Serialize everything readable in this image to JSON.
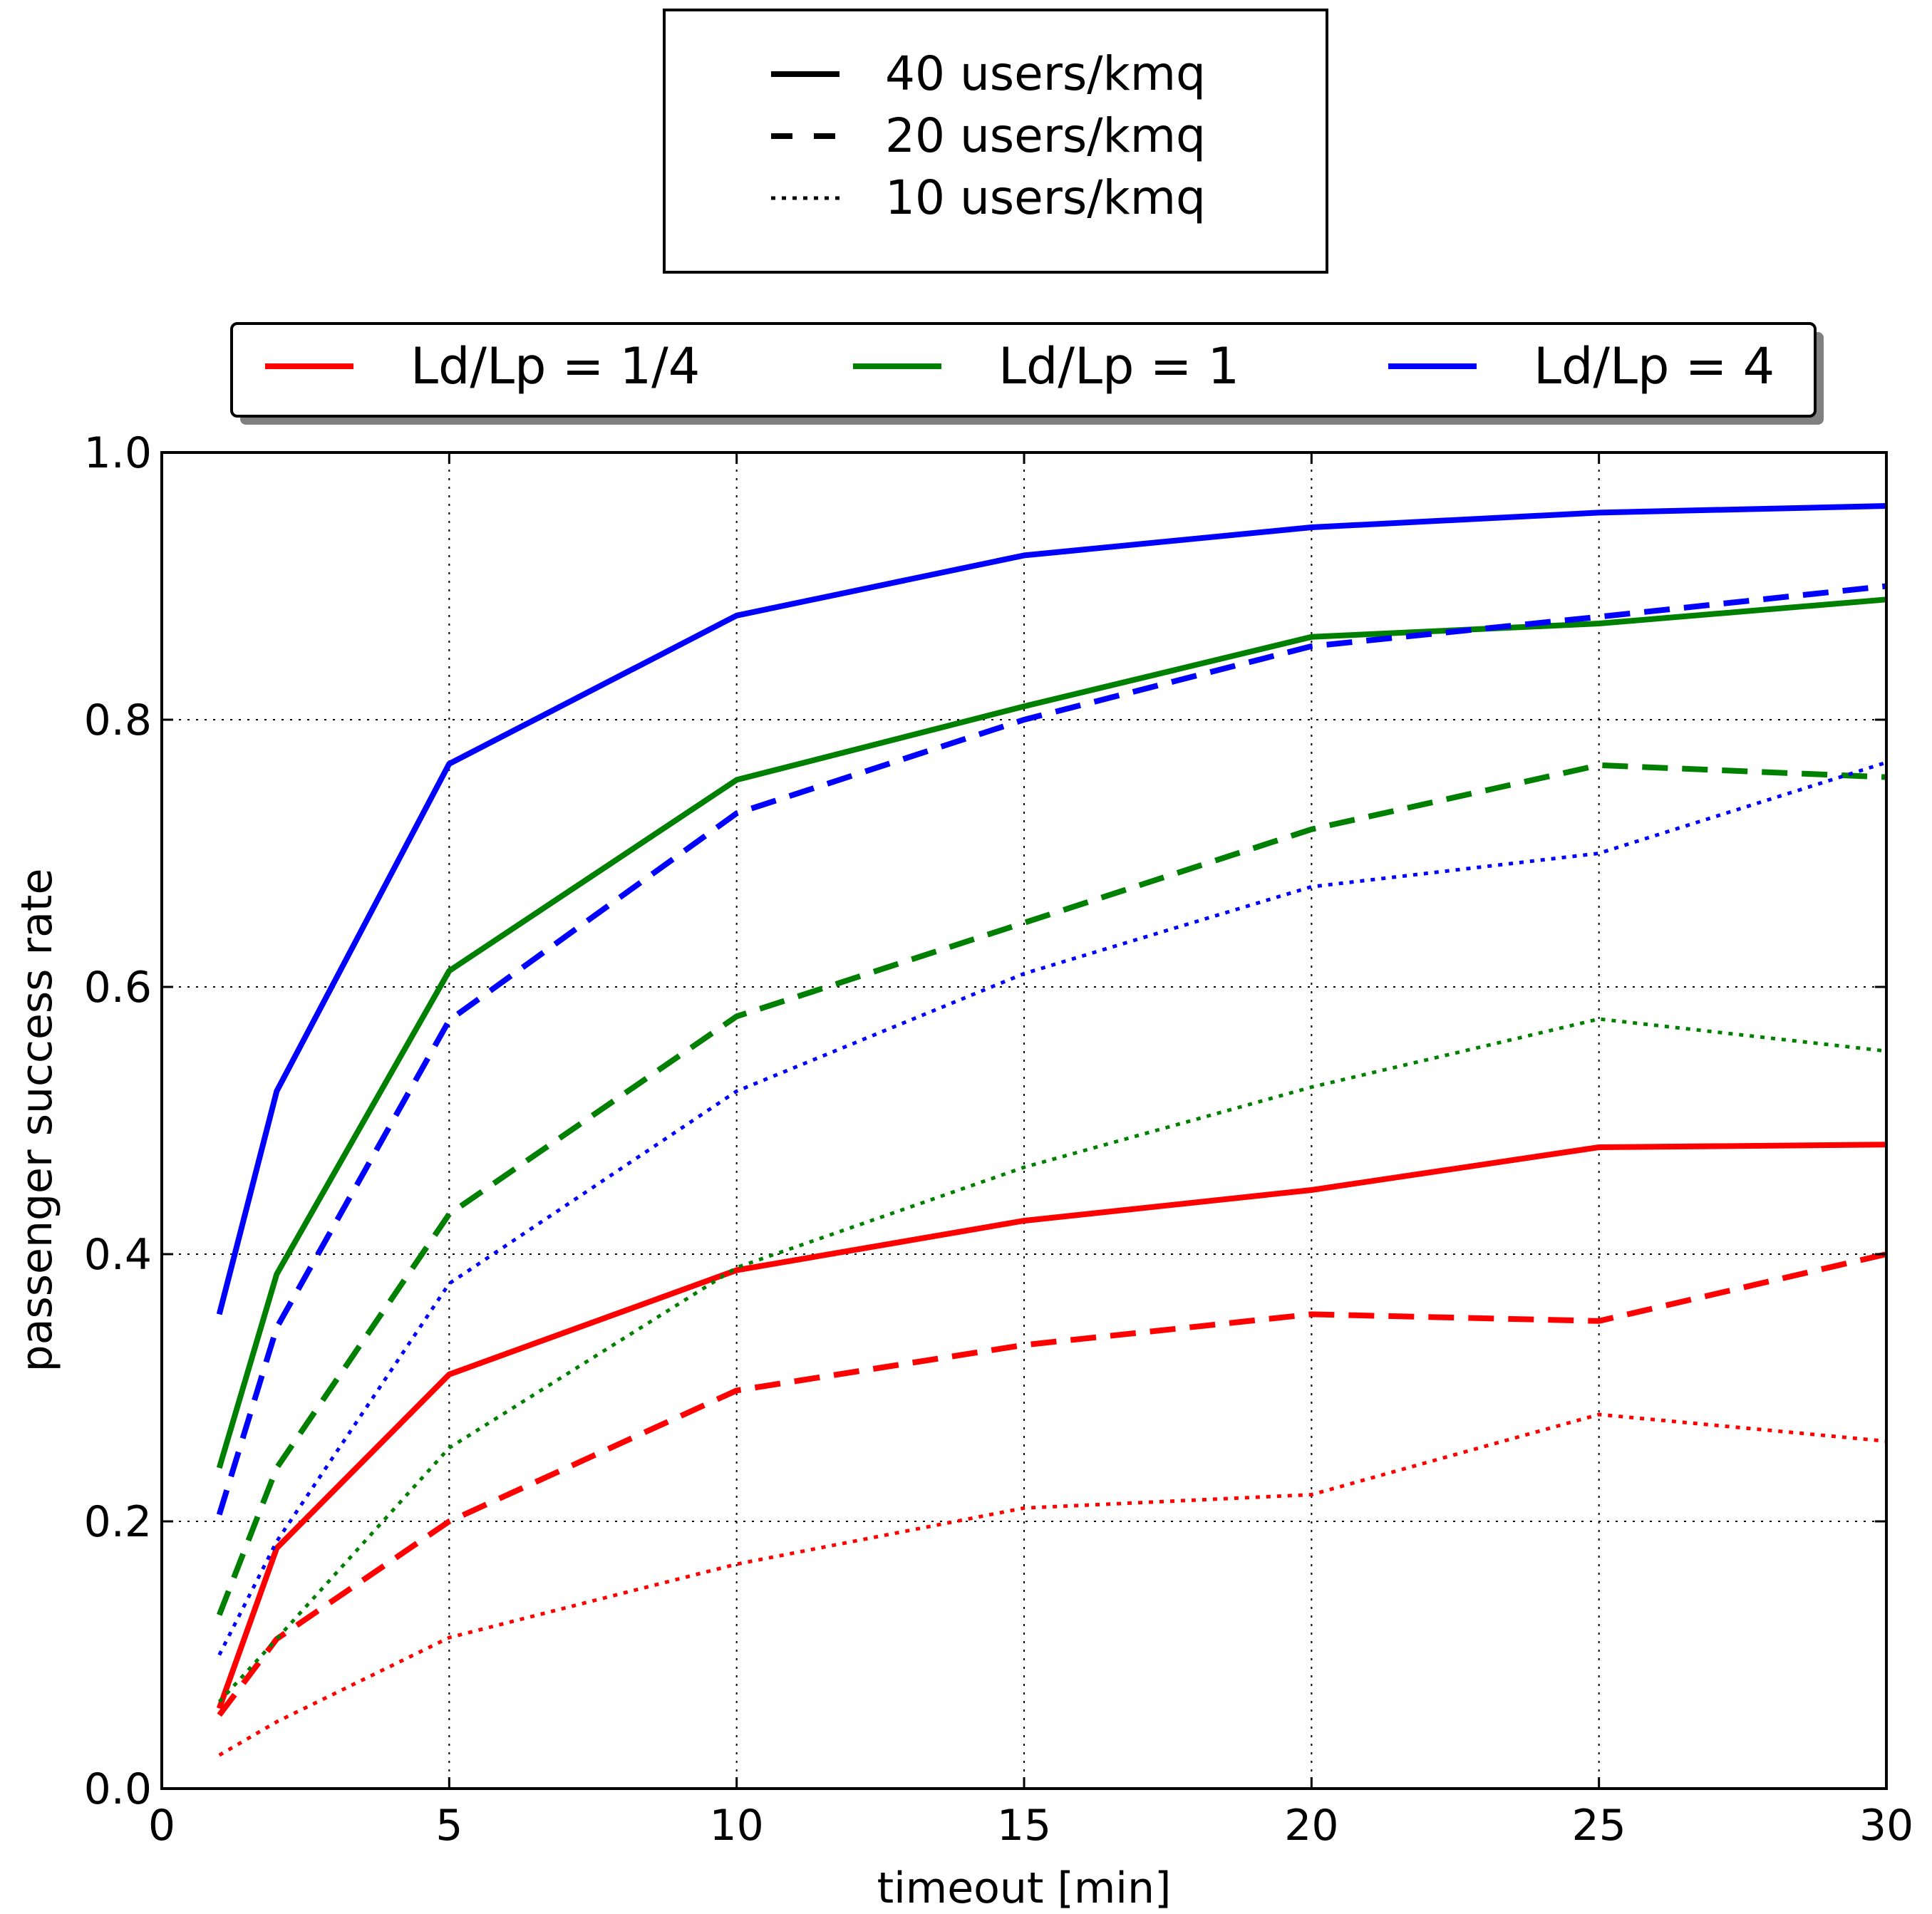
{
  "chart_data": {
    "type": "line",
    "title": "",
    "xlabel": "timeout [min]",
    "ylabel": "passenger success rate",
    "xlim": [
      0,
      30
    ],
    "ylim": [
      0.0,
      1.0
    ],
    "xticks": [
      0,
      5,
      10,
      15,
      20,
      25,
      30
    ],
    "xtick_labels": [
      "0",
      "5",
      "10",
      "15",
      "20",
      "25",
      "30"
    ],
    "yticks": [
      0.0,
      0.2,
      0.4,
      0.6,
      0.8,
      1.0
    ],
    "ytick_labels": [
      "0.0",
      "0.2",
      "0.4",
      "0.6",
      "0.8",
      "1.0"
    ],
    "grid": true,
    "x": [
      1,
      2,
      5,
      10,
      15,
      20,
      25,
      30
    ],
    "series": [
      {
        "name": "Ld/Lp = 1/4, 40 users/kmq",
        "ratio": "Ld/Lp = 1/4",
        "density": "40 users/kmq",
        "color": "#ff0000",
        "style": "solid",
        "values": [
          0.06,
          0.18,
          0.31,
          0.388,
          0.425,
          0.448,
          0.48,
          0.482
        ]
      },
      {
        "name": "Ld/Lp = 1/4, 20 users/kmq",
        "ratio": "Ld/Lp = 1/4",
        "density": "20 users/kmq",
        "color": "#ff0000",
        "style": "dashed",
        "values": [
          0.055,
          0.112,
          0.2,
          0.298,
          0.332,
          0.355,
          0.35,
          0.4
        ]
      },
      {
        "name": "Ld/Lp = 1/4, 10 users/kmq",
        "ratio": "Ld/Lp = 1/4",
        "density": "10 users/kmq",
        "color": "#ff0000",
        "style": "dotted",
        "values": [
          0.025,
          0.05,
          0.113,
          0.168,
          0.21,
          0.22,
          0.28,
          0.26
        ]
      },
      {
        "name": "Ld/Lp = 1, 40 users/kmq",
        "ratio": "Ld/Lp = 1",
        "density": "40 users/kmq",
        "color": "#008000",
        "style": "solid",
        "values": [
          0.24,
          0.385,
          0.612,
          0.755,
          0.81,
          0.862,
          0.872,
          0.89
        ]
      },
      {
        "name": "Ld/Lp = 1, 20 users/kmq",
        "ratio": "Ld/Lp = 1",
        "density": "20 users/kmq",
        "color": "#008000",
        "style": "dashed",
        "values": [
          0.13,
          0.24,
          0.43,
          0.578,
          0.648,
          0.718,
          0.766,
          0.757
        ]
      },
      {
        "name": "Ld/Lp = 1, 10 users/kmq",
        "ratio": "Ld/Lp = 1",
        "density": "10 users/kmq",
        "color": "#008000",
        "style": "dotted",
        "values": [
          0.065,
          0.112,
          0.255,
          0.39,
          0.465,
          0.525,
          0.576,
          0.552
        ]
      },
      {
        "name": "Ld/Lp = 4, 40 users/kmq",
        "ratio": "Ld/Lp = 4",
        "density": "40 users/kmq",
        "color": "#0000ff",
        "style": "solid",
        "values": [
          0.355,
          0.522,
          0.767,
          0.878,
          0.923,
          0.944,
          0.955,
          0.96
        ]
      },
      {
        "name": "Ld/Lp = 4, 20 users/kmq",
        "ratio": "Ld/Lp = 4",
        "density": "20 users/kmq",
        "color": "#0000ff",
        "style": "dashed",
        "values": [
          0.205,
          0.345,
          0.575,
          0.73,
          0.8,
          0.855,
          0.877,
          0.9
        ]
      },
      {
        "name": "Ld/Lp = 4, 10 users/kmq",
        "ratio": "Ld/Lp = 4",
        "density": "10 users/kmq",
        "color": "#0000ff",
        "style": "dotted",
        "values": [
          0.1,
          0.185,
          0.378,
          0.522,
          0.61,
          0.675,
          0.7,
          0.768
        ]
      }
    ],
    "style_legend": {
      "placement": "top-center",
      "entries": [
        {
          "label": "40 users/kmq",
          "style": "solid"
        },
        {
          "label": "20 users/kmq",
          "style": "dashed"
        },
        {
          "label": "10 users/kmq",
          "style": "dotted"
        }
      ]
    },
    "color_legend": {
      "placement": "top, above plot",
      "entries": [
        {
          "label": "Ld/Lp = 1/4",
          "color": "#ff0000"
        },
        {
          "label": "Ld/Lp = 1",
          "color": "#008000"
        },
        {
          "label": "Ld/Lp = 4",
          "color": "#0000ff"
        }
      ]
    }
  }
}
